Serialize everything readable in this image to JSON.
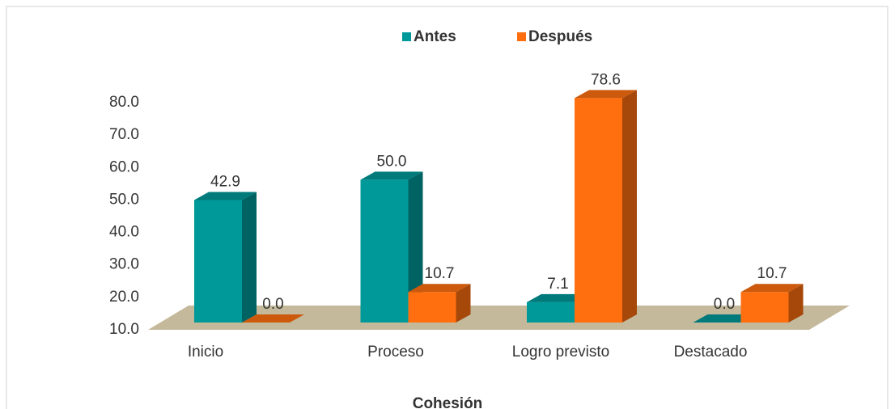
{
  "chart_data": {
    "type": "bar3d",
    "title": "Cohesión",
    "categories": [
      "Inicio",
      "Proceso",
      "Logro previsto",
      "Destacado"
    ],
    "series": [
      {
        "name": "Antes",
        "color": "#009999",
        "values": [
          42.9,
          50.0,
          7.1,
          0.0
        ],
        "value_labels": [
          "42.9",
          "50.0",
          "7.1",
          "0.0"
        ]
      },
      {
        "name": "Después",
        "color": "#ff6f0f",
        "values": [
          0.0,
          10.7,
          78.6,
          10.7
        ],
        "value_labels": [
          "0.0",
          "10.7",
          "78.6",
          "10.7"
        ]
      }
    ],
    "ylim": [
      10,
      80
    ],
    "yticks": [
      {
        "value": 10,
        "label": "10.0"
      },
      {
        "value": 20,
        "label": "20.0"
      },
      {
        "value": 30,
        "label": "30.0"
      },
      {
        "value": 40,
        "label": "40.0"
      },
      {
        "value": 50,
        "label": "50.0"
      },
      {
        "value": 60,
        "label": "60.0"
      },
      {
        "value": 70,
        "label": "70.0"
      },
      {
        "value": 80,
        "label": "80.0"
      }
    ],
    "legend": "top"
  }
}
